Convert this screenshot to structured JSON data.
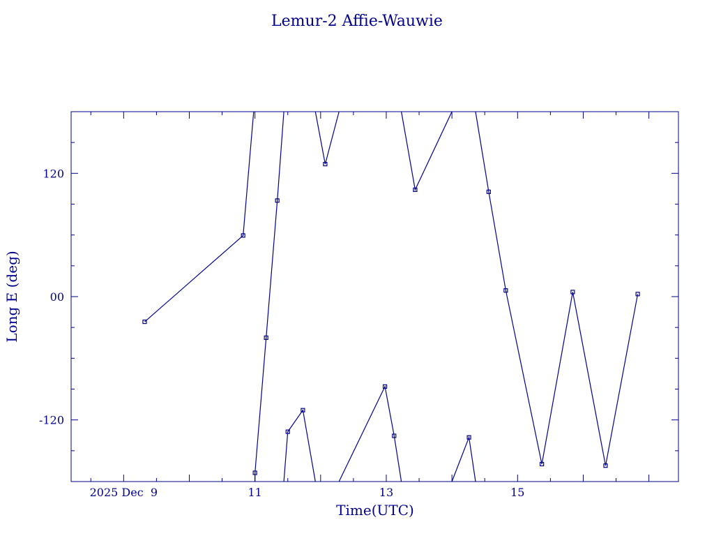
{
  "chart_data": {
    "type": "line",
    "title": "Lemur-2 Affie-Wauwie",
    "xlabel": "Time(UTC)",
    "ylabel": "Long E (deg)",
    "xlim": [
      7.2,
      16.45
    ],
    "ylim": [
      -180,
      180
    ],
    "x_ticks": [
      {
        "x": 8.0,
        "label": "2025 Dec  9"
      },
      {
        "x": 10.0,
        "label": "11"
      },
      {
        "x": 12.0,
        "label": "13"
      },
      {
        "x": 14.0,
        "label": "15"
      }
    ],
    "y_ticks": [
      {
        "y": 120,
        "label": "120"
      },
      {
        "y": 0,
        "label": "00"
      },
      {
        "y": -120,
        "label": "-120"
      }
    ],
    "marker_points": [
      {
        "x": 8.32,
        "y": -24.5
      },
      {
        "x": 9.82,
        "y": 59.5
      },
      {
        "x": 10.0,
        "y": -171.5
      },
      {
        "x": 10.17,
        "y": -40.0
      },
      {
        "x": 10.34,
        "y": 93.5
      },
      {
        "x": 10.5,
        "y": -131.5
      },
      {
        "x": 10.73,
        "y": -110.5
      },
      {
        "x": 11.07,
        "y": 129.0
      },
      {
        "x": 11.98,
        "y": -87.5
      },
      {
        "x": 12.12,
        "y": -135.5
      },
      {
        "x": 12.44,
        "y": 104.0
      },
      {
        "x": 13.26,
        "y": -137.0
      },
      {
        "x": 13.56,
        "y": 102.0
      },
      {
        "x": 13.82,
        "y": 6.0
      },
      {
        "x": 14.37,
        "y": -163.0
      },
      {
        "x": 14.84,
        "y": 4.5
      },
      {
        "x": 15.34,
        "y": -164.5
      },
      {
        "x": 15.83,
        "y": 2.5
      }
    ],
    "segments": [
      [
        [
          8.32,
          -24.5
        ],
        [
          9.82,
          59.5
        ],
        [
          9.98,
          180
        ]
      ],
      [
        [
          10.0,
          -180
        ],
        [
          10.0,
          -171.5
        ],
        [
          10.17,
          -40.0
        ],
        [
          10.34,
          93.5
        ],
        [
          10.44,
          180
        ]
      ],
      [
        [
          10.44,
          -180
        ],
        [
          10.5,
          -131.5
        ],
        [
          10.73,
          -110.5
        ],
        [
          10.92,
          -180
        ]
      ],
      [
        [
          10.92,
          180
        ],
        [
          11.07,
          129.0
        ],
        [
          11.28,
          180
        ]
      ],
      [
        [
          11.28,
          -180
        ],
        [
          11.98,
          -87.5
        ],
        [
          12.12,
          -135.5
        ],
        [
          12.23,
          -180
        ]
      ],
      [
        [
          12.23,
          180
        ],
        [
          12.44,
          104.0
        ],
        [
          13.0,
          180
        ]
      ],
      [
        [
          13.0,
          -180
        ],
        [
          13.26,
          -137.0
        ],
        [
          13.36,
          -180
        ]
      ],
      [
        [
          13.36,
          180
        ],
        [
          13.56,
          102.0
        ],
        [
          13.82,
          6.0
        ],
        [
          14.37,
          -163.0
        ],
        [
          14.84,
          4.5
        ],
        [
          15.34,
          -164.5
        ],
        [
          15.83,
          2.5
        ]
      ]
    ]
  }
}
